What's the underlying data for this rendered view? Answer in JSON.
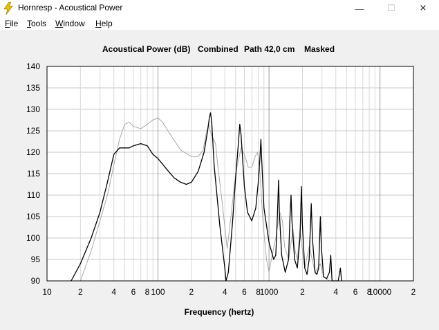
{
  "window": {
    "title": "Hornresp - Acoustical Power",
    "app_icon": "lightning-bolt-icon",
    "minimize_glyph": "—",
    "maximize_glyph": "☐",
    "close_glyph": "✕"
  },
  "menu": {
    "items": [
      "File",
      "Tools",
      "Window",
      "Help"
    ]
  },
  "colors": {
    "background": "#f0f0f0",
    "plot_background": "#ffffff",
    "primary_series": "#000000",
    "secondary_series": "#a8a8a8",
    "grid": "#c8c8c8",
    "icon": "#e8c200"
  },
  "chart_data": {
    "type": "line",
    "title_parts": [
      "Acoustical Power (dB)",
      "Combined",
      "Path 42,0 cm",
      "Masked"
    ],
    "xlabel": "Frequency (hertz)",
    "ylabel": "",
    "x_scale": "log",
    "xlim": [
      10,
      20000
    ],
    "ylim": [
      90,
      140
    ],
    "grid": true,
    "y_ticks": [
      90,
      95,
      100,
      105,
      110,
      115,
      120,
      125,
      130,
      135,
      140
    ],
    "x_tick_labels": [
      {
        "value": 10,
        "label": "10"
      },
      {
        "value": 20,
        "label": "2"
      },
      {
        "value": 40,
        "label": "4"
      },
      {
        "value": 60,
        "label": "6"
      },
      {
        "value": 80,
        "label": "8"
      },
      {
        "value": 100,
        "label": "100"
      },
      {
        "value": 200,
        "label": "2"
      },
      {
        "value": 400,
        "label": "4"
      },
      {
        "value": 600,
        "label": "6"
      },
      {
        "value": 800,
        "label": "8"
      },
      {
        "value": 1000,
        "label": "1000"
      },
      {
        "value": 2000,
        "label": "2"
      },
      {
        "value": 4000,
        "label": "4"
      },
      {
        "value": 6000,
        "label": "6"
      },
      {
        "value": 8000,
        "label": "8"
      },
      {
        "value": 10000,
        "label": "10000"
      },
      {
        "value": 20000,
        "label": "2"
      }
    ],
    "series": [
      {
        "role": "primary",
        "points": [
          [
            16.5,
            90
          ],
          [
            20,
            94
          ],
          [
            25,
            100
          ],
          [
            30,
            106
          ],
          [
            35,
            113
          ],
          [
            40,
            119.5
          ],
          [
            45,
            121
          ],
          [
            50,
            121
          ],
          [
            55,
            121
          ],
          [
            60,
            121.5
          ],
          [
            70,
            122
          ],
          [
            80,
            121.5
          ],
          [
            90,
            119.5
          ],
          [
            100,
            118.5
          ],
          [
            120,
            116
          ],
          [
            140,
            114
          ],
          [
            160,
            113
          ],
          [
            180,
            112.5
          ],
          [
            200,
            113
          ],
          [
            230,
            115.5
          ],
          [
            260,
            120
          ],
          [
            280,
            125
          ],
          [
            290,
            128
          ],
          [
            297,
            129.2
          ],
          [
            305,
            127
          ],
          [
            320,
            117
          ],
          [
            360,
            103
          ],
          [
            400,
            93
          ],
          [
            410,
            90
          ],
          [
            430,
            92
          ],
          [
            470,
            104
          ],
          [
            500,
            114
          ],
          [
            530,
            122
          ],
          [
            545,
            126.5
          ],
          [
            560,
            124
          ],
          [
            600,
            112
          ],
          [
            640,
            106
          ],
          [
            700,
            104
          ],
          [
            760,
            107
          ],
          [
            800,
            113
          ],
          [
            830,
            119
          ],
          [
            845,
            123
          ],
          [
            860,
            118
          ],
          [
            900,
            107
          ],
          [
            1000,
            99
          ],
          [
            1100,
            95
          ],
          [
            1150,
            96
          ],
          [
            1190,
            105
          ],
          [
            1220,
            113.5
          ],
          [
            1240,
            106
          ],
          [
            1300,
            96
          ],
          [
            1400,
            92
          ],
          [
            1500,
            95
          ],
          [
            1540,
            104
          ],
          [
            1580,
            110
          ],
          [
            1610,
            104
          ],
          [
            1700,
            95
          ],
          [
            1800,
            93
          ],
          [
            1900,
            100
          ],
          [
            1960,
            112
          ],
          [
            2000,
            103
          ],
          [
            2100,
            93
          ],
          [
            2200,
            91.5
          ],
          [
            2300,
            95
          ],
          [
            2400,
            108
          ],
          [
            2460,
            100
          ],
          [
            2600,
            92
          ],
          [
            2700,
            91.5
          ],
          [
            2800,
            93
          ],
          [
            2900,
            105
          ],
          [
            2960,
            98
          ],
          [
            3100,
            91
          ],
          [
            3300,
            90.5
          ],
          [
            3500,
            92
          ],
          [
            3600,
            96
          ],
          [
            3700,
            90
          ],
          [
            4200,
            90
          ],
          [
            4400,
            93
          ],
          [
            4500,
            90
          ]
        ]
      },
      {
        "role": "secondary",
        "points": [
          [
            20,
            90
          ],
          [
            25,
            97
          ],
          [
            30,
            104
          ],
          [
            35,
            110
          ],
          [
            40,
            117
          ],
          [
            45,
            123
          ],
          [
            50,
            126.5
          ],
          [
            55,
            127
          ],
          [
            60,
            126
          ],
          [
            70,
            125.5
          ],
          [
            80,
            126.5
          ],
          [
            90,
            127.5
          ],
          [
            100,
            128
          ],
          [
            110,
            127
          ],
          [
            130,
            124
          ],
          [
            160,
            120.5
          ],
          [
            200,
            119
          ],
          [
            230,
            119
          ],
          [
            255,
            120.5
          ],
          [
            270,
            124
          ],
          [
            285,
            126.5
          ],
          [
            295,
            125
          ],
          [
            310,
            123.5
          ],
          [
            330,
            122
          ],
          [
            345,
            117
          ],
          [
            380,
            108
          ],
          [
            420,
            97.5
          ],
          [
            450,
            104
          ],
          [
            500,
            115
          ],
          [
            560,
            121
          ],
          [
            600,
            119.5
          ],
          [
            650,
            116.5
          ],
          [
            700,
            116.5
          ],
          [
            750,
            119
          ],
          [
            790,
            120
          ],
          [
            830,
            115
          ],
          [
            880,
            104
          ],
          [
            950,
            95
          ],
          [
            1000,
            92
          ],
          [
            1050,
            95
          ],
          [
            1150,
            100
          ],
          [
            1250,
            106
          ],
          [
            1320,
            104
          ],
          [
            1380,
            98
          ],
          [
            1500,
            95
          ],
          [
            1650,
            102
          ],
          [
            1720,
            97
          ],
          [
            1800,
            95
          ],
          [
            1900,
            102
          ],
          [
            2000,
            97
          ],
          [
            2100,
            93
          ],
          [
            2300,
            98
          ],
          [
            2450,
            95
          ],
          [
            2600,
            92
          ],
          [
            2900,
            94
          ],
          [
            3100,
            91
          ],
          [
            3500,
            90
          ]
        ]
      }
    ]
  }
}
